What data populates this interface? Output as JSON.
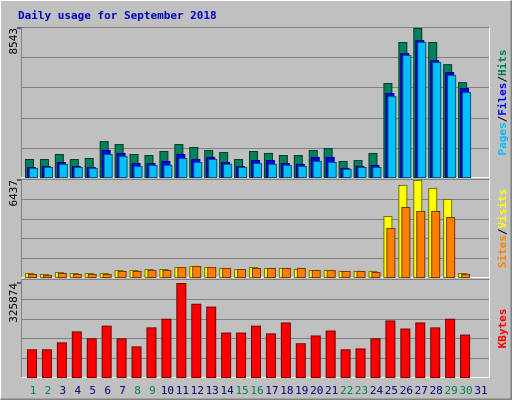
{
  "title": "Daily usage for September 2018",
  "title_color": "#0000C0",
  "chart_data": [
    {
      "type": "bar",
      "legend_separator": "/",
      "ylim": [
        0,
        8543
      ],
      "yticks": [
        8543
      ],
      "series": [
        {
          "name": "Hits",
          "color": "#00805C",
          "values": [
            1030,
            1030,
            1320,
            1030,
            1090,
            2060,
            1890,
            1320,
            1260,
            1490,
            1890,
            1720,
            1550,
            1430,
            1030,
            1490,
            1380,
            1260,
            1260,
            1550,
            1660,
            920,
            970,
            1380,
            5390,
            7740,
            8543,
            7740,
            6470,
            5440,
            0
          ]
        },
        {
          "name": "Files",
          "color": "#0000FF",
          "values": [
            570,
            630,
            860,
            630,
            570,
            1550,
            1380,
            800,
            800,
            920,
            1320,
            1030,
            1150,
            860,
            630,
            970,
            970,
            800,
            750,
            1150,
            1150,
            520,
            630,
            690,
            4810,
            7100,
            7850,
            6700,
            6020,
            5100,
            0
          ]
        },
        {
          "name": "Pages",
          "color": "#00C0FF",
          "values": [
            520,
            570,
            750,
            570,
            520,
            1320,
            1200,
            630,
            690,
            690,
            1090,
            860,
            1030,
            750,
            570,
            800,
            750,
            690,
            630,
            920,
            860,
            460,
            570,
            570,
            4640,
            6990,
            7740,
            6590,
            5850,
            4870,
            0
          ]
        }
      ]
    },
    {
      "type": "bar",
      "legend_separator": "/",
      "ylim": [
        0,
        6437
      ],
      "yticks": [
        6437
      ],
      "series": [
        {
          "name": "Visits",
          "color": "#FFFF00",
          "values": [
            265,
            200,
            330,
            265,
            265,
            265,
            465,
            465,
            530,
            530,
            660,
            730,
            660,
            600,
            530,
            660,
            600,
            600,
            530,
            465,
            465,
            400,
            400,
            400,
            4050,
            6110,
            6437,
            5910,
            5180,
            265,
            0
          ]
        },
        {
          "name": "Sites",
          "color": "#FF8000",
          "values": [
            200,
            130,
            265,
            200,
            200,
            200,
            400,
            400,
            465,
            465,
            660,
            730,
            660,
            600,
            530,
            600,
            600,
            600,
            600,
            465,
            465,
            400,
            400,
            330,
            3250,
            4650,
            4380,
            4380,
            3980,
            200,
            0
          ]
        }
      ]
    },
    {
      "type": "bar",
      "ylim": [
        0,
        325874
      ],
      "yticks": [
        325874
      ],
      "categories": [
        "1",
        "2",
        "3",
        "4",
        "5",
        "6",
        "7",
        "8",
        "9",
        "10",
        "11",
        "12",
        "13",
        "14",
        "15",
        "16",
        "17",
        "18",
        "19",
        "20",
        "21",
        "22",
        "23",
        "24",
        "25",
        "26",
        "27",
        "28",
        "29",
        "30",
        "31"
      ],
      "weekend_days": [
        "1",
        "2",
        "8",
        "9",
        "15",
        "16",
        "22",
        "23",
        "29",
        "30"
      ],
      "weekend_color": "#00805C",
      "weekday_color": "#000080",
      "series": [
        {
          "name": "KBytes",
          "color": "#FF0000",
          "values": [
            96000,
            96000,
            120000,
            158000,
            134000,
            178000,
            134000,
            106000,
            172000,
            202000,
            325874,
            254000,
            244000,
            154000,
            154000,
            178000,
            151000,
            189000,
            117000,
            144000,
            161000,
            96000,
            99000,
            134000,
            196000,
            168000,
            189000,
            172000,
            202000,
            147000,
            0
          ]
        }
      ]
    }
  ]
}
